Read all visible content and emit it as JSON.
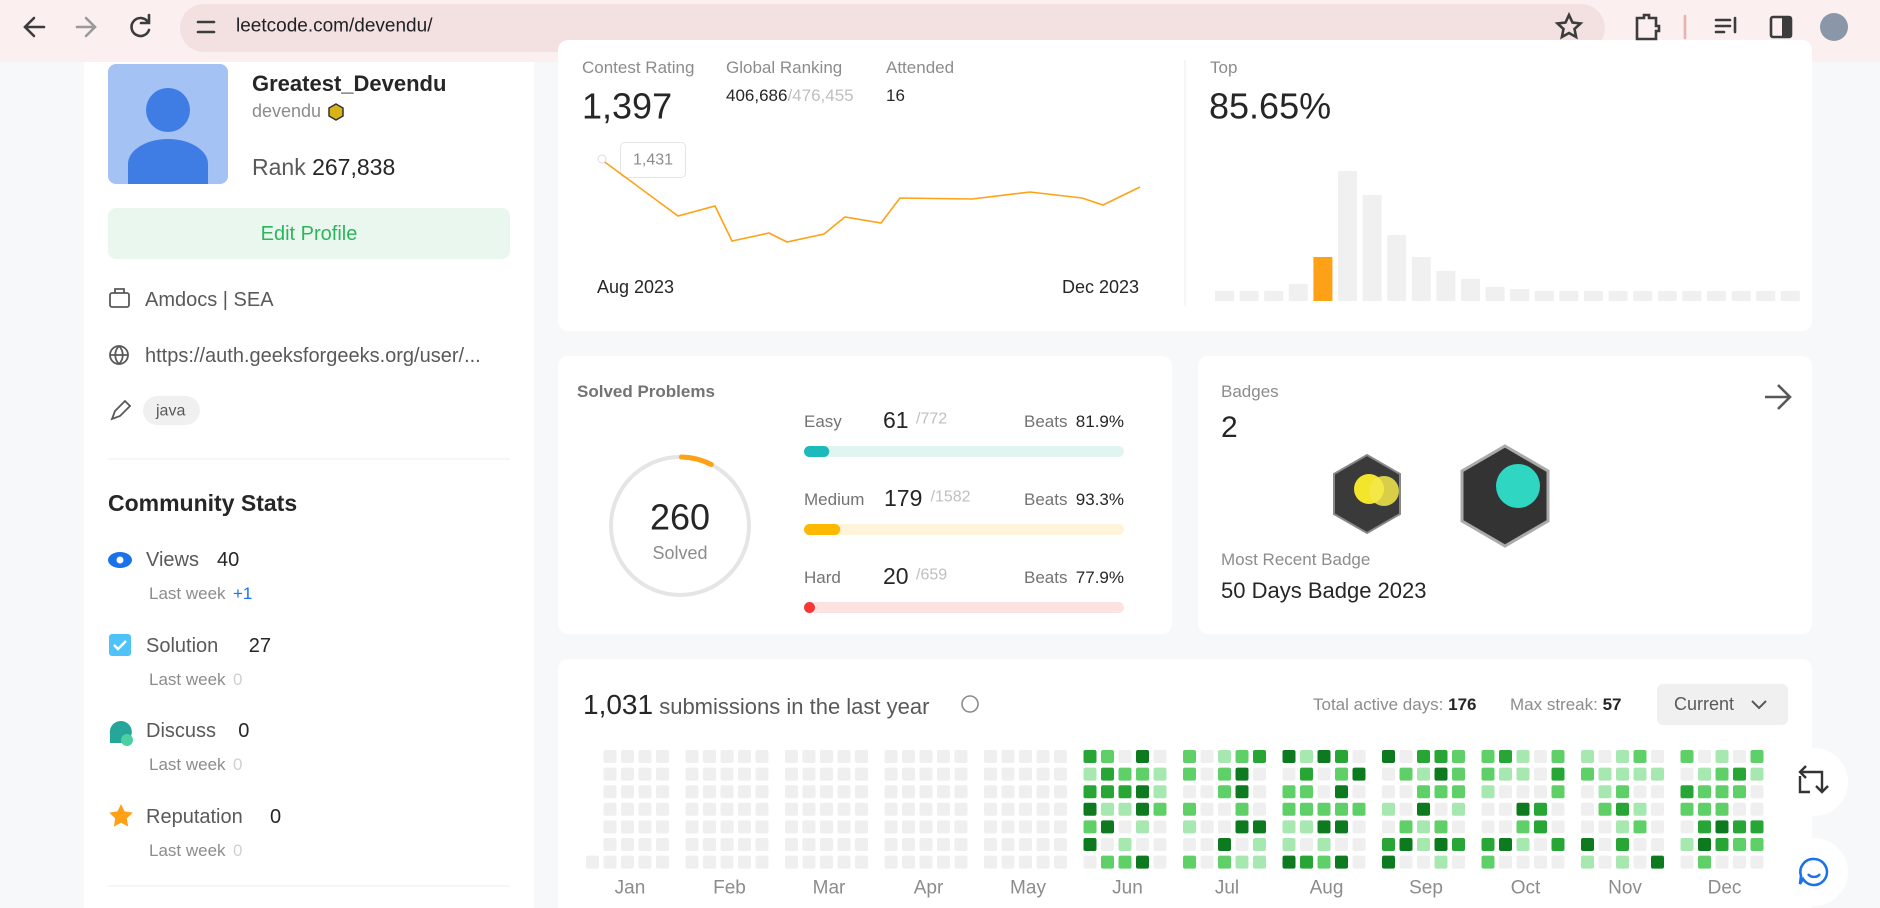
{
  "browser": {
    "url": "leetcode.com/devendu/"
  },
  "profile": {
    "name": "Greatest_Devendu",
    "username": "devendu",
    "rank_label": "Rank",
    "rank": "267,838",
    "edit_button": "Edit Profile",
    "company": "Amdocs | SEA",
    "website": "https://auth.geeksforgeeks.org/user/...",
    "skill": "java"
  },
  "community": {
    "title": "Community Stats",
    "stats": [
      {
        "label": "Views",
        "value": 40,
        "last_week_label": "Last week",
        "last_week": "+1"
      },
      {
        "label": "Solution",
        "value": 27,
        "last_week_label": "Last week",
        "last_week": 0
      },
      {
        "label": "Discuss",
        "value": 0,
        "last_week_label": "Last week",
        "last_week": 0
      },
      {
        "label": "Reputation",
        "value": 0,
        "last_week_label": "Last week",
        "last_week": 0
      }
    ]
  },
  "contest": {
    "rating_label": "Contest Rating",
    "rating": "1,397",
    "global_ranking_label": "Global Ranking",
    "global_ranking": "406,686",
    "global_total": "/476,455",
    "attended_label": "Attended",
    "attended": 16,
    "tooltip": "1,431",
    "start": "Aug 2023",
    "end": "Dec 2023",
    "top_label": "Top",
    "top": "85.65%"
  },
  "solved": {
    "title": "Solved Problems",
    "total": 260,
    "total_label": "Solved",
    "rows": [
      {
        "level": "Easy",
        "solved": 61,
        "total": "/772",
        "beats_label": "Beats",
        "beats": "81.9%"
      },
      {
        "level": "Medium",
        "solved": 179,
        "total": "/1582",
        "beats_label": "Beats",
        "beats": "93.3%"
      },
      {
        "level": "Hard",
        "solved": 20,
        "total": "/659",
        "beats_label": "Beats",
        "beats": "77.9%"
      }
    ]
  },
  "badges": {
    "title": "Badges",
    "count": 2,
    "recent_label": "Most Recent Badge",
    "recent": "50 Days Badge 2023"
  },
  "submissions": {
    "count": "1,031",
    "label": "submissions in the last year",
    "active_label": "Total active days:",
    "active": 176,
    "streak_label": "Max streak:",
    "streak": 57,
    "dropdown": "Current",
    "months": [
      "Jan",
      "Feb",
      "Mar",
      "Apr",
      "May",
      "Jun",
      "Jul",
      "Aug",
      "Sep",
      "Oct",
      "Nov",
      "Dec"
    ]
  }
}
